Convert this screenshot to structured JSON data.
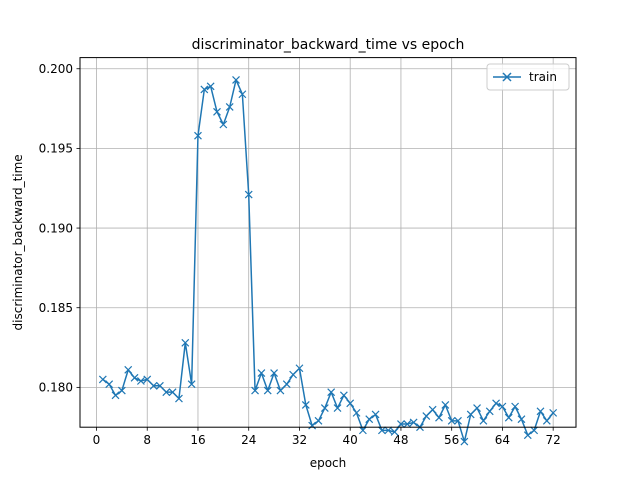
{
  "chart_data": {
    "type": "line",
    "title": "discriminator_backward_time vs epoch",
    "xlabel": "epoch",
    "ylabel": "discriminator_backward_time",
    "xlim": [
      -2.6,
      75.6
    ],
    "ylim": [
      0.1775,
      0.2007
    ],
    "xticks": [
      0,
      8,
      16,
      24,
      32,
      40,
      48,
      56,
      64,
      72
    ],
    "yticks": [
      0.18,
      0.185,
      0.19,
      0.195,
      0.2
    ],
    "ytick_labels": [
      "0.180",
      "0.185",
      "0.190",
      "0.195",
      "0.200"
    ],
    "grid": true,
    "legend_position": "top-right",
    "series": [
      {
        "name": "train",
        "color": "#1f77b4",
        "marker": "x",
        "x": [
          1,
          2,
          3,
          4,
          5,
          6,
          7,
          8,
          9,
          10,
          11,
          12,
          13,
          14,
          15,
          16,
          17,
          18,
          19,
          20,
          21,
          22,
          23,
          24,
          25,
          26,
          27,
          28,
          29,
          30,
          31,
          32,
          33,
          34,
          35,
          36,
          37,
          38,
          39,
          40,
          41,
          42,
          43,
          44,
          45,
          46,
          47,
          48,
          49,
          50,
          51,
          52,
          53,
          54,
          55,
          56,
          57,
          58,
          59,
          60,
          61,
          62,
          63,
          64,
          65,
          66,
          67,
          68,
          69,
          70,
          71,
          72
        ],
        "y": [
          0.1805,
          0.1802,
          0.1795,
          0.1798,
          0.1811,
          0.1806,
          0.1804,
          0.1805,
          0.1801,
          0.1801,
          0.1797,
          0.1797,
          0.1793,
          0.1828,
          0.1802,
          0.1958,
          0.1987,
          0.1989,
          0.1973,
          0.1965,
          0.1976,
          0.1993,
          0.1984,
          0.1921,
          0.1798,
          0.1809,
          0.1798,
          0.1809,
          0.1798,
          0.1802,
          0.1808,
          0.1812,
          0.1789,
          0.1776,
          0.1779,
          0.1787,
          0.1797,
          0.1787,
          0.1795,
          0.179,
          0.1784,
          0.1773,
          0.178,
          0.1783,
          0.1773,
          0.1773,
          0.1772,
          0.1777,
          0.1777,
          0.1778,
          0.1775,
          0.1782,
          0.1786,
          0.1781,
          0.1789,
          0.1779,
          0.1779,
          0.1766,
          0.1783,
          0.1787,
          0.1779,
          0.1785,
          0.179,
          0.1788,
          0.1781,
          0.1788,
          0.178,
          0.177,
          0.1773,
          0.1785,
          0.1779,
          0.1784
        ]
      }
    ]
  }
}
